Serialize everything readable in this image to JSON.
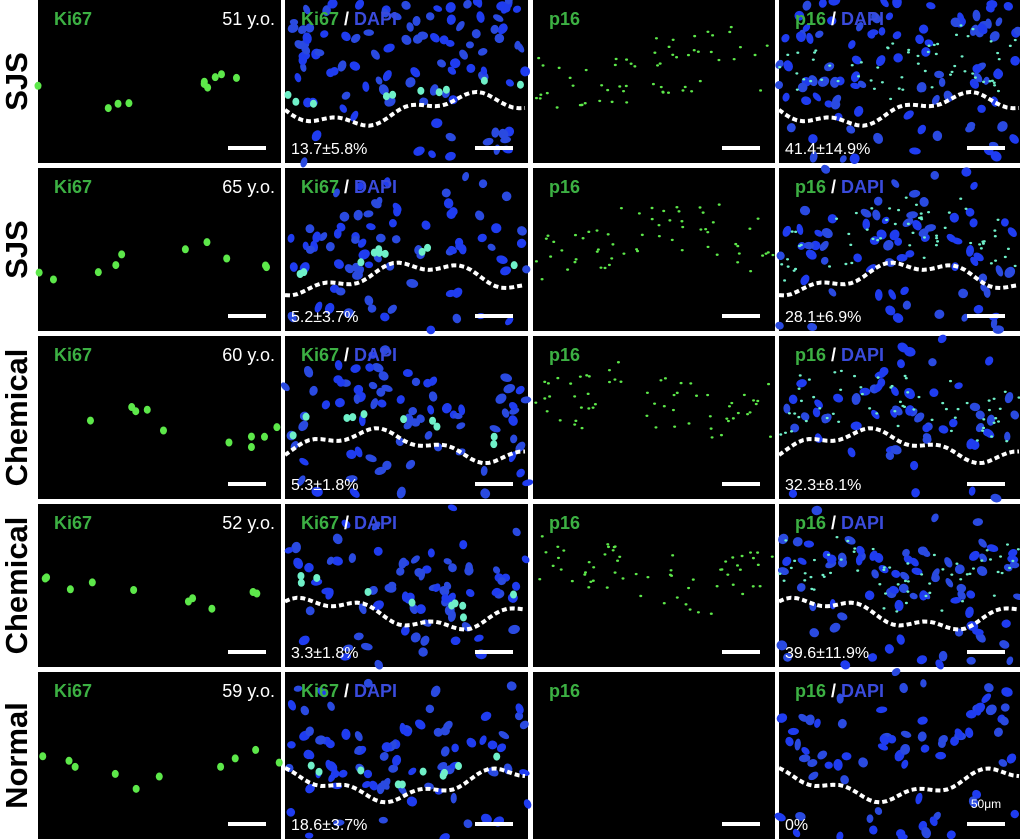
{
  "figure": {
    "columns": [
      {
        "marker": "Ki67"
      },
      {
        "marker": "Ki67",
        "separator": "/",
        "stain": "DAPI"
      },
      {
        "marker": "p16"
      },
      {
        "marker": "p16",
        "separator": "/",
        "stain": "DAPI"
      }
    ],
    "rows": [
      {
        "group": "SJS",
        "age": "51 y.o.",
        "ki67_quantification": "13.7±5.8%",
        "p16_quantification": "41.4±14.9%"
      },
      {
        "group": "SJS",
        "age": "65 y.o.",
        "ki67_quantification": "5.2±3.7%",
        "p16_quantification": "28.1±6.9%"
      },
      {
        "group": "Chemical",
        "age": "60 y.o.",
        "ki67_quantification": "5.3±1.8%",
        "p16_quantification": "32.3±8.1%"
      },
      {
        "group": "Chemical",
        "age": "52 y.o.",
        "ki67_quantification": "3.3±1.8%",
        "p16_quantification": "39.6±11.9%"
      },
      {
        "group": "Normal",
        "age": "59 y.o.",
        "ki67_quantification": "18.6±3.7%",
        "p16_quantification": "0%"
      }
    ],
    "scale_bar": "50μm"
  }
}
